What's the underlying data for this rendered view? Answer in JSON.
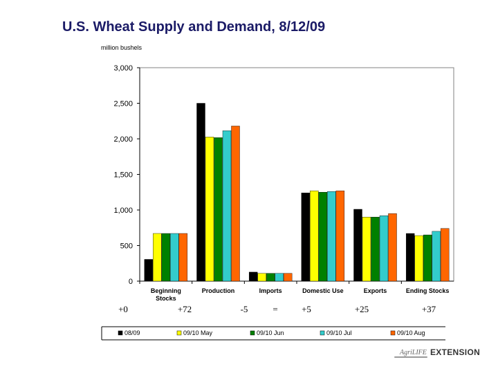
{
  "title": "U.S. Wheat Supply and Demand, 8/12/09",
  "logo_text": "AgriLIFE EXTENSION",
  "chart_data": {
    "type": "bar",
    "ylabel": "million bushels",
    "ylim": [
      0,
      3000
    ],
    "yticks": [
      "0",
      "500",
      "1,000",
      "1,500",
      "2,000",
      "2,500",
      "3,000"
    ],
    "grid": false,
    "legend_position": "bottom",
    "categories": [
      [
        "Beginning",
        "Stocks"
      ],
      [
        "Production"
      ],
      [
        "Imports"
      ],
      [
        "Domestic Use"
      ],
      [
        "Exports"
      ],
      [
        "Ending Stocks"
      ]
    ],
    "series": [
      {
        "name": "08/09",
        "color": "#000000",
        "values": [
          306,
          2500,
          127,
          1240,
          1010,
          670
        ]
      },
      {
        "name": "09/10 May",
        "color": "#ffff00",
        "values": [
          670,
          2026,
          110,
          1270,
          900,
          640
        ]
      },
      {
        "name": "09/10 Jun",
        "color": "#008000",
        "values": [
          670,
          2018,
          110,
          1250,
          900,
          650
        ]
      },
      {
        "name": "09/10 Jul",
        "color": "#33cccc",
        "values": [
          670,
          2115,
          110,
          1260,
          920,
          700
        ]
      },
      {
        "name": "09/10 Aug",
        "color": "#ff6600",
        "values": [
          670,
          2180,
          110,
          1270,
          950,
          740
        ]
      }
    ],
    "changes": [
      "+0",
      "+72",
      "-5",
      "=",
      "+5",
      "+25",
      "+37"
    ]
  }
}
